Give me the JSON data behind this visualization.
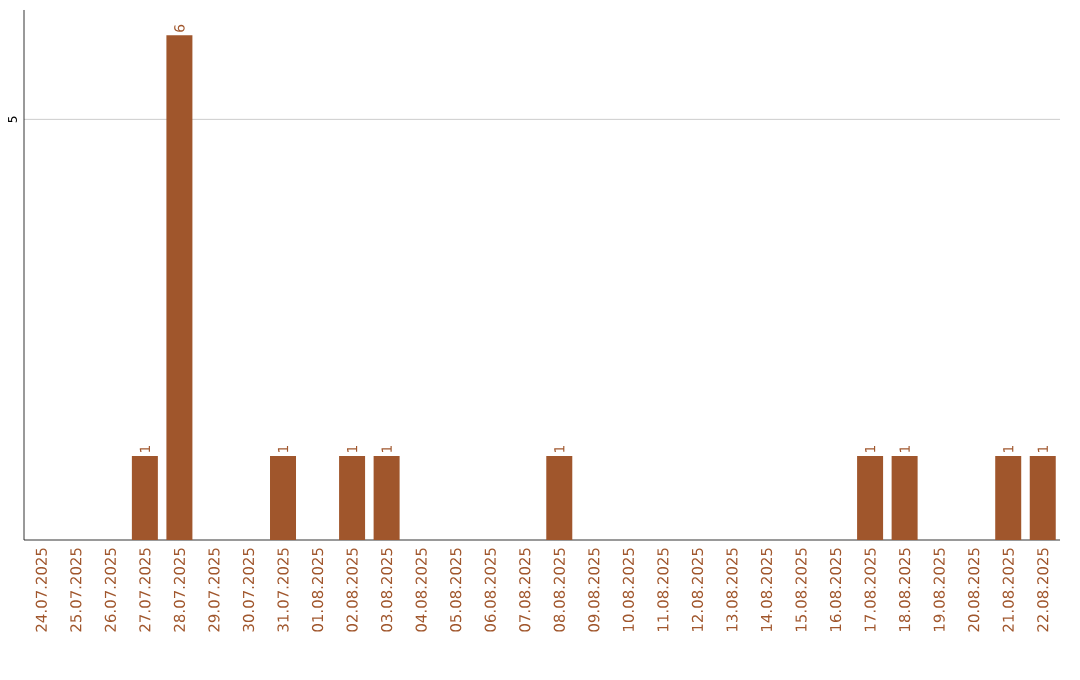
{
  "chart_data": {
    "type": "bar",
    "color": "#a0562c",
    "categories": [
      "24.07.2025",
      "25.07.2025",
      "26.07.2025",
      "27.07.2025",
      "28.07.2025",
      "29.07.2025",
      "30.07.2025",
      "31.07.2025",
      "01.08.2025",
      "02.08.2025",
      "03.08.2025",
      "04.08.2025",
      "05.08.2025",
      "06.08.2025",
      "07.08.2025",
      "08.08.2025",
      "09.08.2025",
      "10.08.2025",
      "11.08.2025",
      "12.08.2025",
      "13.08.2025",
      "14.08.2025",
      "15.08.2025",
      "16.08.2025",
      "17.08.2025",
      "18.08.2025",
      "19.08.2025",
      "20.08.2025",
      "21.08.2025",
      "22.08.2025"
    ],
    "values": [
      0,
      0,
      0,
      1,
      6,
      0,
      0,
      1,
      0,
      1,
      1,
      0,
      0,
      0,
      0,
      1,
      0,
      0,
      0,
      0,
      0,
      0,
      0,
      0,
      1,
      1,
      0,
      0,
      1,
      1
    ],
    "value_labels": [
      null,
      null,
      null,
      "1",
      "6",
      null,
      null,
      "1",
      null,
      "1",
      "1",
      null,
      null,
      null,
      null,
      "1",
      null,
      null,
      null,
      null,
      null,
      null,
      null,
      null,
      "1",
      "1",
      null,
      null,
      "1",
      "1"
    ],
    "ylim": [
      0,
      6.3
    ],
    "yticks": [
      5
    ],
    "grid": "y"
  }
}
